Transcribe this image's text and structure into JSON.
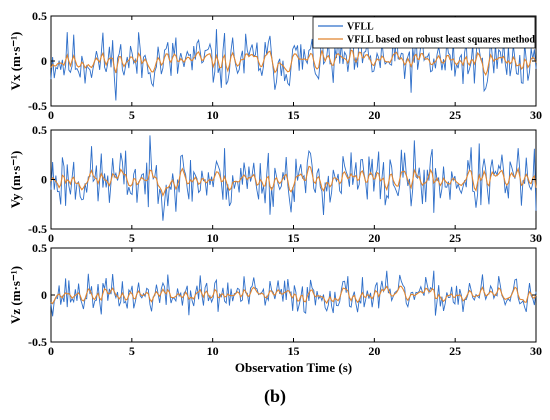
{
  "caption": "(b)",
  "colors": {
    "series1": "#2f6fc9",
    "series2": "#e0852f",
    "axis": "#000000"
  },
  "chart_data": [
    {
      "type": "line",
      "ylabel": "Vx (m·s⁻¹)",
      "xlabel": "",
      "xlim": [
        0,
        30
      ],
      "ylim": [
        -0.5,
        0.5
      ],
      "xticks": [
        0,
        5,
        10,
        15,
        20,
        25,
        30
      ],
      "yticks": [
        -0.5,
        0,
        0.5
      ],
      "legend": "top-right",
      "grid": false,
      "series": [
        {
          "name": "VFLL",
          "amplitude": 0.16,
          "seed": 11
        },
        {
          "name": "VFLL based on robust least squares method",
          "amplitude": 0.07,
          "seed": 11
        }
      ]
    },
    {
      "type": "line",
      "ylabel": "Vy (m·s⁻¹)",
      "xlabel": "",
      "xlim": [
        0,
        30
      ],
      "ylim": [
        -0.5,
        0.5
      ],
      "xticks": [
        0,
        5,
        10,
        15,
        20,
        25,
        30
      ],
      "yticks": [
        -0.5,
        0,
        0.5
      ],
      "grid": false,
      "series": [
        {
          "name": "VFLL",
          "amplitude": 0.16,
          "seed": 23
        },
        {
          "name": "VFLL based on robust least squares method",
          "amplitude": 0.07,
          "seed": 23
        }
      ]
    },
    {
      "type": "line",
      "ylabel": "Vz (m·s⁻¹)",
      "xlabel": "Observation Time (s)",
      "xlim": [
        0,
        30
      ],
      "ylim": [
        -0.5,
        0.5
      ],
      "xticks": [
        0,
        5,
        10,
        15,
        20,
        25,
        30
      ],
      "yticks": [
        -0.5,
        0,
        0.5
      ],
      "grid": false,
      "series": [
        {
          "name": "VFLL",
          "amplitude": 0.1,
          "seed": 37
        },
        {
          "name": "VFLL based on robust least squares method",
          "amplitude": 0.05,
          "seed": 37
        }
      ]
    }
  ]
}
